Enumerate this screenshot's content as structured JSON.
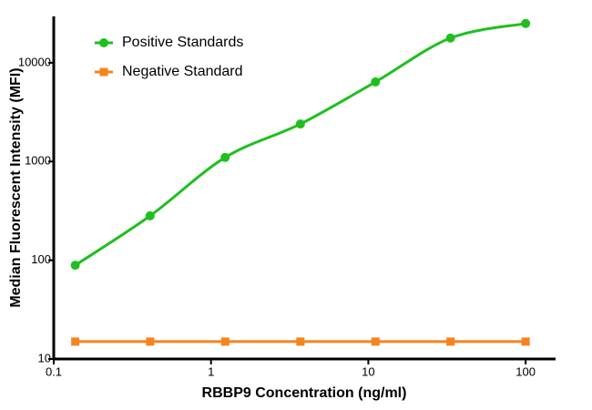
{
  "chart_data": {
    "type": "scatter",
    "xlabel": "RBBP9 Concentration (ng/ml)",
    "ylabel": "Median Fluorescent Intensity (MFI)",
    "x": [
      0.137,
      0.41,
      1.23,
      3.7,
      11.1,
      33.3,
      100
    ],
    "series": [
      {
        "name": "Positive Standards",
        "color": "#1fbf1f",
        "marker": "circle",
        "curve": "smooth",
        "values": [
          89,
          282,
          1100,
          2400,
          6400,
          17800,
          25000
        ]
      },
      {
        "name": "Negative Standard",
        "color": "#f5841f",
        "marker": "square",
        "curve": "straight",
        "values": [
          15,
          15,
          15,
          15,
          15,
          15,
          15
        ]
      }
    ],
    "xscale": "log",
    "yscale": "log",
    "xlim": [
      0.1,
      155
    ],
    "ylim": [
      10,
      29500
    ],
    "xticks": [
      0.1,
      1,
      10,
      100
    ],
    "yticks": [
      10,
      100,
      1000,
      10000
    ],
    "grid": false,
    "legend": "upper left"
  }
}
